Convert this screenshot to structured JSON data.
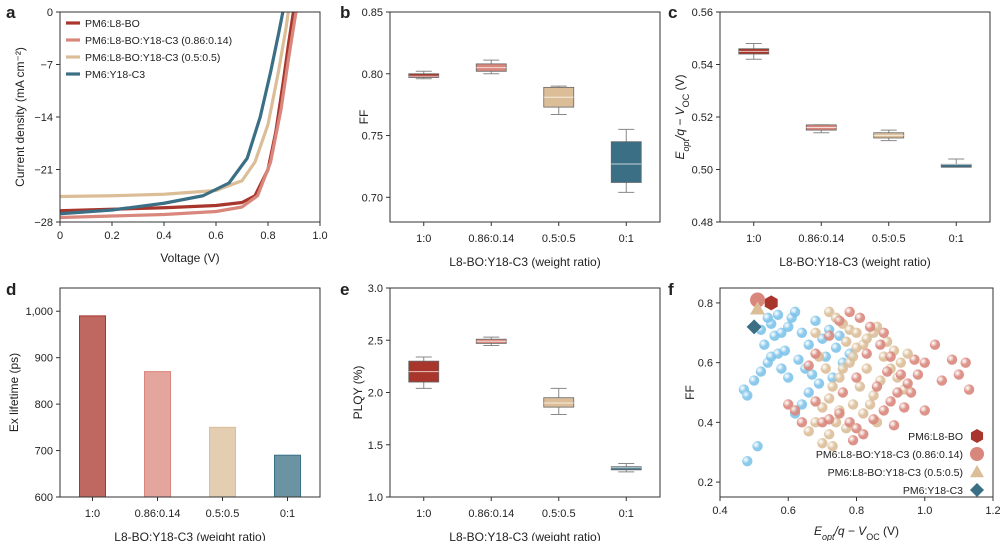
{
  "colors": {
    "l8bo": "#a8362c",
    "mix086": "#d9877c",
    "mix05": "#dbbe98",
    "y18": "#3b6f85",
    "blue_scatter": "#7fc4ea"
  },
  "chart_data": [
    {
      "panel": "a",
      "type": "line",
      "xlabel": "Voltage (V)",
      "ylabel": "Current density (mA cm⁻²)",
      "xlim": [
        0,
        1.0
      ],
      "ylim": [
        -28,
        0
      ],
      "x_ticks": [
        "0",
        "0.2",
        "0.4",
        "0.6",
        "0.8",
        "1.0"
      ],
      "y_ticks": [
        "0",
        "−7",
        "−14",
        "−21",
        "−28"
      ],
      "legend_position": "top-left",
      "series": [
        {
          "name": "PM6:L8-BO",
          "color_key": "l8bo",
          "points": [
            [
              0,
              -26.5
            ],
            [
              0.2,
              -26.3
            ],
            [
              0.4,
              -26.1
            ],
            [
              0.6,
              -25.8
            ],
            [
              0.7,
              -25.4
            ],
            [
              0.75,
              -24.5
            ],
            [
              0.8,
              -21.0
            ],
            [
              0.83,
              -16.0
            ],
            [
              0.86,
              -9.0
            ],
            [
              0.88,
              -4.0
            ],
            [
              0.9,
              0.5
            ]
          ]
        },
        {
          "name": "PM6:L8-BO:Y18-C3 (0.86:0.14)",
          "color_key": "mix086",
          "points": [
            [
              0,
              -27.4
            ],
            [
              0.2,
              -27.2
            ],
            [
              0.4,
              -27.0
            ],
            [
              0.6,
              -26.6
            ],
            [
              0.7,
              -26.0
            ],
            [
              0.76,
              -24.5
            ],
            [
              0.81,
              -20.0
            ],
            [
              0.85,
              -13.0
            ],
            [
              0.88,
              -6.0
            ],
            [
              0.91,
              0.5
            ]
          ]
        },
        {
          "name": "PM6:L8-BO:Y18-C3 (0.5:0.5)",
          "color_key": "mix05",
          "points": [
            [
              0,
              -24.6
            ],
            [
              0.2,
              -24.5
            ],
            [
              0.4,
              -24.3
            ],
            [
              0.6,
              -23.8
            ],
            [
              0.7,
              -22.5
            ],
            [
              0.75,
              -20.0
            ],
            [
              0.8,
              -15.0
            ],
            [
              0.84,
              -8.0
            ],
            [
              0.87,
              -2.0
            ],
            [
              0.88,
              0.5
            ]
          ]
        },
        {
          "name": "PM6:Y18-C3",
          "color_key": "y18",
          "points": [
            [
              0,
              -26.9
            ],
            [
              0.2,
              -26.4
            ],
            [
              0.4,
              -25.5
            ],
            [
              0.55,
              -24.5
            ],
            [
              0.65,
              -22.8
            ],
            [
              0.72,
              -19.5
            ],
            [
              0.77,
              -14.0
            ],
            [
              0.81,
              -8.0
            ],
            [
              0.84,
              -3.0
            ],
            [
              0.86,
              0.5
            ]
          ]
        }
      ]
    },
    {
      "panel": "b",
      "type": "box",
      "xlabel": "L8-BO:Y18-C3 (weight ratio)",
      "ylabel": "FF",
      "ylim": [
        0.68,
        0.85
      ],
      "y_ticks": [
        0.7,
        0.75,
        0.8,
        0.85
      ],
      "categories": [
        "1:0",
        "0.86:0.14",
        "0.5:0.5",
        "0:1"
      ],
      "boxes": [
        {
          "color_key": "l8bo",
          "min": 0.796,
          "q1": 0.797,
          "median": 0.798,
          "q3": 0.8,
          "max": 0.802
        },
        {
          "color_key": "mix086",
          "min": 0.8,
          "q1": 0.802,
          "median": 0.805,
          "q3": 0.808,
          "max": 0.811
        },
        {
          "color_key": "mix05",
          "min": 0.767,
          "q1": 0.773,
          "median": 0.781,
          "q3": 0.789,
          "max": 0.79
        },
        {
          "color_key": "y18",
          "min": 0.704,
          "q1": 0.712,
          "median": 0.727,
          "q3": 0.745,
          "max": 0.755
        }
      ]
    },
    {
      "panel": "c",
      "type": "box",
      "xlabel": "L8-BO:Y18-C3 (weight ratio)",
      "ylabel": "Eopt/q − VOC (V)",
      "ylim": [
        0.48,
        0.56
      ],
      "y_ticks": [
        0.48,
        0.5,
        0.52,
        0.54,
        0.56
      ],
      "categories": [
        "1:0",
        "0.86:0.14",
        "0.5:0.5",
        "0:1"
      ],
      "boxes": [
        {
          "color_key": "l8bo",
          "min": 0.542,
          "q1": 0.544,
          "median": 0.545,
          "q3": 0.546,
          "max": 0.548
        },
        {
          "color_key": "mix086",
          "min": 0.514,
          "q1": 0.515,
          "median": 0.516,
          "q3": 0.517,
          "max": 0.517
        },
        {
          "color_key": "mix05",
          "min": 0.511,
          "q1": 0.512,
          "median": 0.513,
          "q3": 0.514,
          "max": 0.515
        },
        {
          "color_key": "y18",
          "min": 0.501,
          "q1": 0.501,
          "median": 0.502,
          "q3": 0.502,
          "max": 0.504
        }
      ]
    },
    {
      "panel": "d",
      "type": "bar",
      "xlabel": "L8-BO:Y18-C3 (weight ratio)",
      "ylabel": "Ex lifetime (ps)",
      "ylim": [
        600,
        1050
      ],
      "y_ticks": [
        "600",
        "700",
        "800",
        "900",
        "1,000"
      ],
      "categories": [
        "1:0",
        "0.86:0.14",
        "0.5:0.5",
        "0:1"
      ],
      "values": [
        990,
        870,
        750,
        690
      ],
      "color_keys": [
        "l8bo",
        "mix086",
        "mix05",
        "y18"
      ]
    },
    {
      "panel": "e",
      "type": "box",
      "xlabel": "L8-BO:Y18-C3 (weight ratio)",
      "ylabel": "PLQY (%)",
      "ylim": [
        1.0,
        3.0
      ],
      "y_ticks": [
        "1.0",
        "1.5",
        "2.0",
        "2.5",
        "3.0"
      ],
      "categories": [
        "1:0",
        "0.86:0.14",
        "0.5:0.5",
        "0:1"
      ],
      "boxes": [
        {
          "color_key": "l8bo",
          "min": 2.04,
          "q1": 2.1,
          "median": 2.2,
          "q3": 2.3,
          "max": 2.34
        },
        {
          "color_key": "mix086",
          "min": 2.45,
          "q1": 2.47,
          "median": 2.49,
          "q3": 2.51,
          "max": 2.53
        },
        {
          "color_key": "mix05",
          "min": 1.79,
          "q1": 1.86,
          "median": 1.9,
          "q3": 1.95,
          "max": 2.04
        },
        {
          "color_key": "y18",
          "min": 1.24,
          "q1": 1.26,
          "median": 1.28,
          "q3": 1.29,
          "max": 1.32
        }
      ]
    },
    {
      "panel": "f",
      "type": "scatter",
      "xlabel": "Eopt/q − VOC (V)",
      "ylabel": "FF",
      "xlim": [
        0.4,
        1.2
      ],
      "ylim": [
        0.15,
        0.85
      ],
      "x_ticks": [
        "0.4",
        "0.6",
        "0.8",
        "1.0",
        "1.2"
      ],
      "y_ticks": [
        "0.2",
        "0.4",
        "0.6",
        "0.8"
      ],
      "legend_position": "bottom-right",
      "legend": [
        {
          "name": "PM6:L8-BO",
          "marker": "hexagon",
          "color_key": "l8bo"
        },
        {
          "name": "PM6:L8-BO:Y18-C3 (0.86:0.14)",
          "marker": "circle",
          "color_key": "mix086"
        },
        {
          "name": "PM6:L8-BO:Y18-C3 (0.5:0.5)",
          "marker": "triangle",
          "color_key": "mix05"
        },
        {
          "name": "PM6:Y18-C3",
          "marker": "diamond",
          "color_key": "y18"
        }
      ],
      "highlighted": [
        {
          "x": 0.55,
          "y": 0.8,
          "marker": "hexagon",
          "color_key": "l8bo"
        },
        {
          "x": 0.51,
          "y": 0.81,
          "marker": "circle",
          "color_key": "mix086"
        },
        {
          "x": 0.51,
          "y": 0.78,
          "marker": "triangle",
          "color_key": "mix05"
        },
        {
          "x": 0.5,
          "y": 0.72,
          "marker": "diamond",
          "color_key": "y18"
        }
      ],
      "background_groups": [
        {
          "color_key": "blue_scatter",
          "points": [
            [
              0.48,
              0.27
            ],
            [
              0.51,
              0.32
            ],
            [
              0.47,
              0.51
            ],
            [
              0.48,
              0.49
            ],
            [
              0.5,
              0.54
            ],
            [
              0.52,
              0.57
            ],
            [
              0.54,
              0.6
            ],
            [
              0.55,
              0.62
            ],
            [
              0.57,
              0.63
            ],
            [
              0.53,
              0.66
            ],
            [
              0.56,
              0.69
            ],
            [
              0.58,
              0.7
            ],
            [
              0.6,
              0.72
            ],
            [
              0.61,
              0.75
            ],
            [
              0.62,
              0.77
            ],
            [
              0.55,
              0.73
            ],
            [
              0.57,
              0.76
            ],
            [
              0.59,
              0.64
            ],
            [
              0.63,
              0.61
            ],
            [
              0.65,
              0.58
            ],
            [
              0.67,
              0.56
            ],
            [
              0.69,
              0.53
            ],
            [
              0.62,
              0.43
            ],
            [
              0.64,
              0.46
            ],
            [
              0.66,
              0.5
            ],
            [
              0.7,
              0.68
            ],
            [
              0.72,
              0.71
            ],
            [
              0.74,
              0.65
            ],
            [
              0.68,
              0.74
            ],
            [
              0.71,
              0.62
            ],
            [
              0.76,
              0.6
            ],
            [
              0.52,
              0.71
            ],
            [
              0.54,
              0.75
            ],
            [
              0.6,
              0.55
            ],
            [
              0.66,
              0.66
            ],
            [
              0.73,
              0.55
            ],
            [
              0.78,
              0.63
            ],
            [
              0.64,
              0.7
            ],
            [
              0.58,
              0.58
            ],
            [
              0.75,
              0.69
            ]
          ]
        },
        {
          "color_key": "mix05",
          "points": [
            [
              0.66,
              0.37
            ],
            [
              0.68,
              0.4
            ],
            [
              0.7,
              0.45
            ],
            [
              0.72,
              0.48
            ],
            [
              0.73,
              0.52
            ],
            [
              0.75,
              0.55
            ],
            [
              0.76,
              0.58
            ],
            [
              0.78,
              0.6
            ],
            [
              0.79,
              0.62
            ],
            [
              0.8,
              0.65
            ],
            [
              0.82,
              0.66
            ],
            [
              0.83,
              0.68
            ],
            [
              0.85,
              0.7
            ],
            [
              0.86,
              0.72
            ],
            [
              0.72,
              0.77
            ],
            [
              0.74,
              0.75
            ],
            [
              0.76,
              0.73
            ],
            [
              0.78,
              0.71
            ],
            [
              0.8,
              0.7
            ],
            [
              0.7,
              0.33
            ],
            [
              0.72,
              0.36
            ],
            [
              0.74,
              0.4
            ],
            [
              0.88,
              0.62
            ],
            [
              0.9,
              0.58
            ],
            [
              0.92,
              0.55
            ],
            [
              0.94,
              0.51
            ],
            [
              0.84,
              0.46
            ],
            [
              0.82,
              0.43
            ],
            [
              0.86,
              0.4
            ],
            [
              0.73,
              0.32
            ],
            [
              0.77,
              0.38
            ],
            [
              0.81,
              0.52
            ],
            [
              0.87,
              0.54
            ],
            [
              0.89,
              0.67
            ],
            [
              0.91,
              0.64
            ],
            [
              0.93,
              0.6
            ],
            [
              0.79,
              0.46
            ],
            [
              0.75,
              0.44
            ],
            [
              0.71,
              0.58
            ],
            [
              0.69,
              0.62
            ],
            [
              0.77,
              0.67
            ],
            [
              0.83,
              0.58
            ],
            [
              0.85,
              0.49
            ],
            [
              0.95,
              0.63
            ],
            [
              0.68,
              0.7
            ]
          ]
        },
        {
          "color_key": "mix086",
          "points": [
            [
              0.6,
              0.46
            ],
            [
              0.62,
              0.44
            ],
            [
              0.64,
              0.4
            ],
            [
              0.7,
              0.4
            ],
            [
              0.72,
              0.41
            ],
            [
              0.75,
              0.43
            ],
            [
              0.78,
              0.4
            ],
            [
              0.8,
              0.38
            ],
            [
              0.82,
              0.36
            ],
            [
              0.85,
              0.41
            ],
            [
              0.88,
              0.44
            ],
            [
              0.9,
              0.47
            ],
            [
              0.92,
              0.5
            ],
            [
              0.95,
              0.53
            ],
            [
              0.98,
              0.56
            ],
            [
              1.0,
              0.6
            ],
            [
              1.03,
              0.66
            ],
            [
              1.08,
              0.61
            ],
            [
              1.1,
              0.56
            ],
            [
              1.13,
              0.51
            ],
            [
              1.12,
              0.6
            ],
            [
              1.05,
              0.54
            ],
            [
              1.0,
              0.44
            ],
            [
              0.96,
              0.5
            ],
            [
              0.93,
              0.56
            ],
            [
              0.9,
              0.62
            ],
            [
              0.87,
              0.66
            ],
            [
              0.84,
              0.72
            ],
            [
              0.81,
              0.75
            ],
            [
              0.78,
              0.77
            ],
            [
              0.75,
              0.74
            ],
            [
              0.72,
              0.69
            ],
            [
              0.68,
              0.63
            ],
            [
              0.66,
              0.59
            ],
            [
              0.86,
              0.52
            ],
            [
              0.89,
              0.57
            ],
            [
              0.91,
              0.39
            ],
            [
              0.94,
              0.45
            ],
            [
              0.97,
              0.61
            ],
            [
              0.76,
              0.5
            ],
            [
              0.8,
              0.55
            ],
            [
              0.83,
              0.63
            ],
            [
              0.88,
              0.7
            ],
            [
              0.79,
              0.34
            ],
            [
              0.68,
              0.47
            ]
          ]
        }
      ]
    }
  ]
}
